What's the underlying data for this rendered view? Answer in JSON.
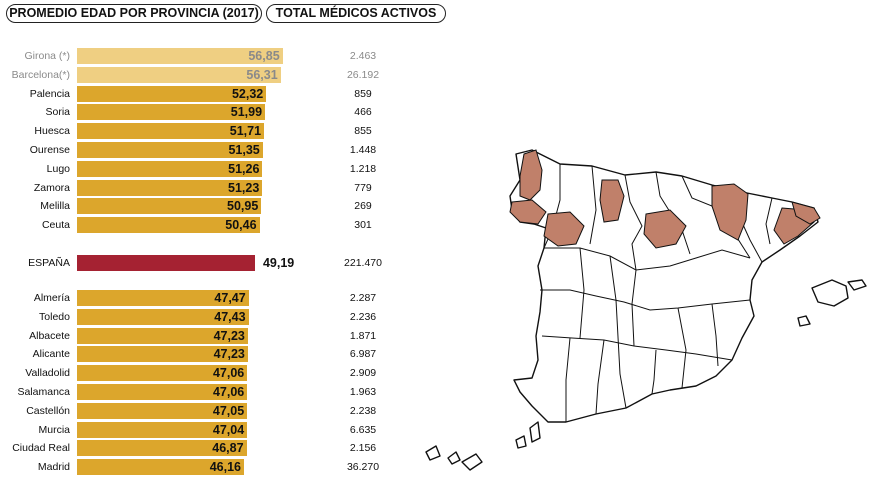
{
  "headers": {
    "age_title": "PROMEDIO EDAD POR PROVINCIA (2017)",
    "total_title": "TOTAL MÉDICOS ACTIVOS"
  },
  "colors": {
    "bar_light": "#efcf82",
    "bar_main": "#dca62c",
    "bar_national": "#a52232",
    "map_highlight": "#c0806a",
    "map_stroke": "#111111"
  },
  "chart_data": {
    "type": "bar",
    "orientation": "horizontal",
    "xlim": [
      0,
      57.5
    ],
    "categories": [
      "Girona (*)",
      "Barcelona(*)",
      "Palencia",
      "Soria",
      "Huesca",
      "Ourense",
      "Lugo",
      "Zamora",
      "Melilla",
      "Ceuta",
      "ESPAÑA",
      "Almería",
      "Toledo",
      "Albacete",
      "Alicante",
      "Valladolid",
      "Salamanca",
      "Castellón",
      "Murcia",
      "Ciudad Real",
      "Madrid"
    ],
    "values": [
      56.85,
      56.31,
      52.32,
      51.99,
      51.71,
      51.35,
      51.26,
      51.23,
      50.95,
      50.46,
      49.19,
      47.47,
      47.43,
      47.23,
      47.23,
      47.06,
      47.06,
      47.05,
      47.04,
      46.87,
      46.16
    ],
    "value_labels": [
      "56,85",
      "56,31",
      "52,32",
      "51,99",
      "51,71",
      "51,35",
      "51,26",
      "51,23",
      "50,95",
      "50,46",
      "49,19",
      "47,47",
      "47,43",
      "47,23",
      "47,23",
      "47,06",
      "47,06",
      "47,05",
      "47,04",
      "46,87",
      "46,16"
    ],
    "doctor_counts": [
      "2.463",
      "26.192",
      "859",
      "466",
      "855",
      "1.448",
      "1.218",
      "779",
      "269",
      "301",
      "221.470",
      "2.287",
      "2.236",
      "1.871",
      "6.987",
      "2.909",
      "1.963",
      "2.238",
      "6.635",
      "2.156",
      "36.270"
    ],
    "highlighted_provinces": [
      "Girona",
      "Barcelona",
      "Palencia",
      "Soria",
      "Huesca",
      "Ourense",
      "Lugo",
      "Zamora"
    ]
  }
}
